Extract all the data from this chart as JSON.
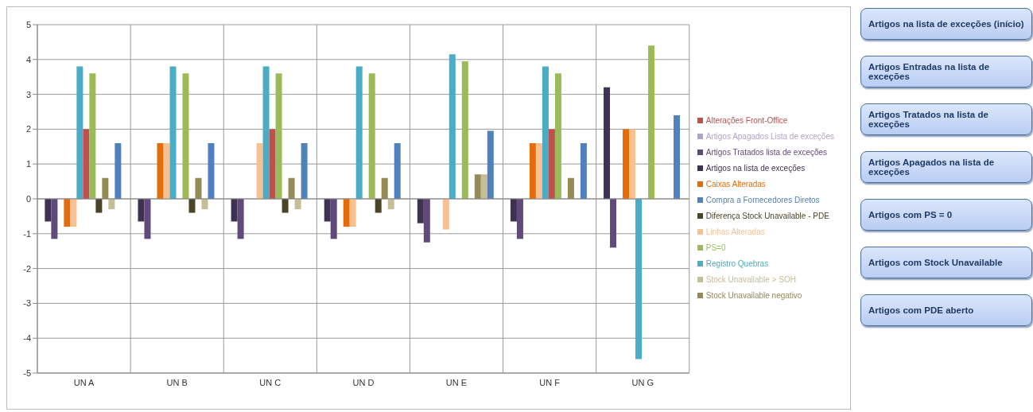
{
  "chart_data": {
    "type": "bar",
    "categories": [
      "UN A",
      "UN B",
      "UN C",
      "UN D",
      "UN E",
      "UN F",
      "UN G"
    ],
    "series": [
      {
        "name": "Artigos na lista de exceções",
        "color": "#3f3151",
        "values": [
          -0.65,
          -0.65,
          -0.65,
          -0.65,
          -0.7,
          -0.65,
          3.2
        ]
      },
      {
        "name": "Artigos Tratados lista de exceções",
        "color": "#604a7b",
        "values": [
          -1.15,
          -1.15,
          -1.15,
          -1.15,
          -1.25,
          -1.15,
          -1.4
        ]
      },
      {
        "name": "Artigos Apagados Lista de exceções",
        "color": "#b3a2c7",
        "values": [
          null,
          null,
          null,
          null,
          null,
          null,
          null
        ]
      },
      {
        "name": "Caixas Alteradas",
        "color": "#e46c0a",
        "values": [
          -0.8,
          1.6,
          null,
          -0.8,
          null,
          1.6,
          2.0
        ]
      },
      {
        "name": "Linhas Alteradas",
        "color": "#fac090",
        "values": [
          -0.8,
          1.6,
          1.6,
          -0.8,
          -0.88,
          1.6,
          2.0
        ]
      },
      {
        "name": "Registro Quebras",
        "color": "#4bacc6",
        "values": [
          3.8,
          3.8,
          3.8,
          3.8,
          4.15,
          3.8,
          -4.6
        ]
      },
      {
        "name": "Alterações Front-Office",
        "color": "#c0504d",
        "values": [
          2.0,
          null,
          2.0,
          null,
          null,
          2.0,
          null
        ]
      },
      {
        "name": "PS=0",
        "color": "#9bbb59",
        "values": [
          3.6,
          3.6,
          3.6,
          3.6,
          3.95,
          3.6,
          4.4
        ]
      },
      {
        "name": "Diferença Stock Unavailable - PDE",
        "color": "#4a4528",
        "values": [
          -0.4,
          -0.4,
          -0.4,
          -0.4,
          null,
          null,
          null
        ]
      },
      {
        "name": "Stock Unavailable negativo",
        "color": "#948a54",
        "values": [
          0.6,
          0.6,
          0.6,
          0.6,
          0.7,
          0.6,
          null
        ]
      },
      {
        "name": "Stock Unavailable > SOH",
        "color": "#c4bd97",
        "values": [
          -0.3,
          -0.3,
          -0.3,
          -0.3,
          0.7,
          null,
          null
        ]
      },
      {
        "name": "Compra a Fornecedores Diretos",
        "color": "#4f81bd",
        "values": [
          1.6,
          1.6,
          1.6,
          1.6,
          1.95,
          1.6,
          2.4
        ]
      }
    ],
    "ylim": [
      -5,
      5
    ],
    "yticks": [
      -5,
      -4,
      -3,
      -2,
      -1,
      0,
      1,
      2,
      3,
      4,
      5
    ],
    "grid": true,
    "legend": "right",
    "annotations": [
      "Artigos na lista de exceções (início)",
      "Artigos Entradas na lista de exceções",
      "Artigos Tratados na lista de exceções",
      "Artigos Apagados na lista de exceções",
      "Artigos com PS = 0",
      "Artigos com Stock Unavailable",
      "Artigos com PDE aberto"
    ]
  }
}
